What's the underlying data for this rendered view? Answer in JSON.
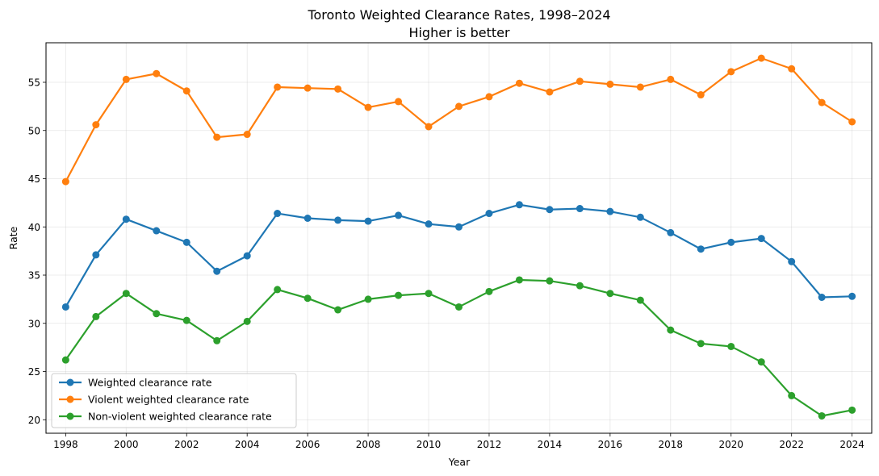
{
  "chart_data": {
    "type": "line",
    "title": "Toronto Weighted Clearance Rates, 1998–2024",
    "subtitle": "Higher is better",
    "xlabel": "Year",
    "ylabel": "Rate",
    "xlim": [
      1997.35,
      2024.65
    ],
    "ylim": [
      18.6,
      59.1
    ],
    "xticks": [
      1998,
      2000,
      2002,
      2004,
      2006,
      2008,
      2010,
      2012,
      2014,
      2016,
      2018,
      2020,
      2022,
      2024
    ],
    "yticks": [
      20,
      25,
      30,
      35,
      40,
      45,
      50,
      55
    ],
    "grid": true,
    "legend_position": "lower-left",
    "x": [
      1998,
      1999,
      2000,
      2001,
      2002,
      2003,
      2004,
      2005,
      2006,
      2007,
      2008,
      2009,
      2010,
      2011,
      2012,
      2013,
      2014,
      2015,
      2016,
      2017,
      2018,
      2019,
      2020,
      2021,
      2022,
      2023,
      2024
    ],
    "series": [
      {
        "name": "Weighted clearance rate",
        "color": "#1f77b4",
        "values": [
          31.7,
          37.1,
          40.8,
          39.6,
          38.4,
          35.4,
          37.0,
          41.4,
          40.9,
          40.7,
          40.6,
          41.2,
          40.3,
          40.0,
          41.4,
          42.3,
          41.8,
          41.9,
          41.6,
          41.0,
          39.4,
          37.7,
          38.4,
          38.8,
          36.4,
          32.7,
          32.8
        ]
      },
      {
        "name": "Violent weighted clearance rate",
        "color": "#ff7f0e",
        "values": [
          44.7,
          50.6,
          55.3,
          55.9,
          54.1,
          49.3,
          49.6,
          54.5,
          54.4,
          54.3,
          52.4,
          53.0,
          50.4,
          52.5,
          53.5,
          54.9,
          54.0,
          55.1,
          54.8,
          54.5,
          55.3,
          53.7,
          56.1,
          57.5,
          56.4,
          52.9,
          50.9
        ]
      },
      {
        "name": "Non-violent weighted clearance rate",
        "color": "#2ca02c",
        "values": [
          26.2,
          30.7,
          33.1,
          31.0,
          30.3,
          28.2,
          30.2,
          33.5,
          32.6,
          31.4,
          32.5,
          32.9,
          33.1,
          31.7,
          33.3,
          34.5,
          34.4,
          33.9,
          33.1,
          32.4,
          29.3,
          27.9,
          27.6,
          26.0,
          22.5,
          20.4,
          21.0
        ]
      }
    ]
  }
}
